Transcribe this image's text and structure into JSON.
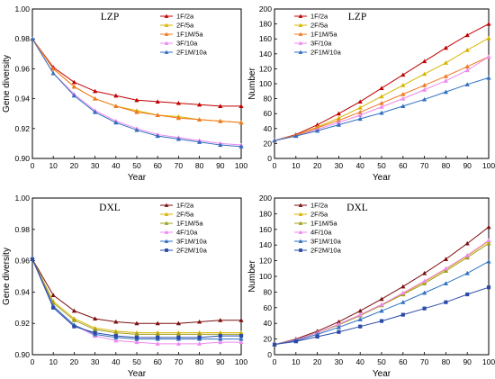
{
  "chart_data": [
    {
      "type": "line",
      "title": "LZP",
      "xlabel": "Year",
      "ylabel": "Gene diversity",
      "xlim": [
        0,
        100
      ],
      "ylim": [
        0.9,
        1.0
      ],
      "xticks": [
        "0",
        "10",
        "20",
        "30",
        "40",
        "50",
        "60",
        "70",
        "80",
        "90",
        "100"
      ],
      "yticks": [
        "0.90",
        "0.92",
        "0.94",
        "0.96",
        "0.98",
        "1.00"
      ],
      "legend": "top-right",
      "x": [
        0,
        10,
        20,
        30,
        40,
        50,
        60,
        70,
        80,
        90,
        100
      ],
      "series": [
        {
          "name": "1F/2a",
          "color": "#c00000",
          "marker": "triangle",
          "values": [
            0.98,
            0.961,
            0.951,
            0.945,
            0.942,
            0.939,
            0.938,
            0.937,
            0.936,
            0.935,
            0.935
          ]
        },
        {
          "name": "2F/5a",
          "color": "#d8b400",
          "marker": "triangle",
          "values": [
            0.98,
            0.96,
            0.948,
            0.94,
            0.935,
            0.932,
            0.929,
            0.928,
            0.926,
            0.925,
            0.924
          ]
        },
        {
          "name": "1F1M/5a",
          "color": "#f07820",
          "marker": "triangle",
          "values": [
            0.98,
            0.96,
            0.948,
            0.94,
            0.935,
            0.931,
            0.929,
            0.927,
            0.926,
            0.925,
            0.924
          ]
        },
        {
          "name": "3F/10a",
          "color": "#ee88ee",
          "marker": "triangle",
          "values": [
            0.98,
            0.957,
            0.943,
            0.932,
            0.925,
            0.92,
            0.916,
            0.914,
            0.912,
            0.91,
            0.909
          ]
        },
        {
          "name": "2F1M/10a",
          "color": "#2f6fc0",
          "marker": "triangle",
          "values": [
            0.98,
            0.957,
            0.942,
            0.931,
            0.924,
            0.919,
            0.915,
            0.913,
            0.911,
            0.909,
            0.908
          ]
        }
      ]
    },
    {
      "type": "line",
      "title": "LZP",
      "xlabel": "Year",
      "ylabel": "Number",
      "xlim": [
        0,
        100
      ],
      "ylim": [
        0,
        200
      ],
      "xticks": [
        "0",
        "10",
        "20",
        "30",
        "40",
        "50",
        "60",
        "70",
        "80",
        "90",
        "100"
      ],
      "yticks": [
        "0",
        "20",
        "40",
        "60",
        "80",
        "100",
        "120",
        "140",
        "160",
        "180",
        "200"
      ],
      "legend": "top-left",
      "x": [
        0,
        10,
        20,
        30,
        40,
        50,
        60,
        70,
        80,
        90,
        100
      ],
      "series": [
        {
          "name": "1F/2a",
          "color": "#c00000",
          "marker": "triangle",
          "values": [
            24,
            32,
            45,
            60,
            76,
            94,
            112,
            130,
            148,
            165,
            180
          ]
        },
        {
          "name": "2F/5a",
          "color": "#d8b400",
          "marker": "triangle",
          "values": [
            24,
            31,
            42,
            54,
            68,
            83,
            98,
            113,
            128,
            145,
            161
          ]
        },
        {
          "name": "1F1M/5a",
          "color": "#f07820",
          "marker": "triangle",
          "values": [
            24,
            31,
            41,
            51,
            62,
            74,
            86,
            98,
            110,
            123,
            136
          ]
        },
        {
          "name": "3F/10a",
          "color": "#ee88ee",
          "marker": "triangle",
          "values": [
            24,
            30,
            39,
            48,
            58,
            69,
            80,
            92,
            104,
            118,
            136
          ]
        },
        {
          "name": "2F1M/10a",
          "color": "#2f6fc0",
          "marker": "triangle",
          "values": [
            24,
            30,
            37,
            45,
            53,
            61,
            70,
            79,
            89,
            99,
            108
          ]
        }
      ]
    },
    {
      "type": "line",
      "title": "DXL",
      "xlabel": "Year",
      "ylabel": "Gene diversity",
      "xlim": [
        0,
        100
      ],
      "ylim": [
        0.9,
        1.0
      ],
      "xticks": [
        "0",
        "10",
        "20",
        "30",
        "40",
        "50",
        "60",
        "70",
        "80",
        "90",
        "100"
      ],
      "yticks": [
        "0.90",
        "0.92",
        "0.94",
        "0.96",
        "0.98",
        "1.00"
      ],
      "legend": "top-right",
      "x": [
        0,
        10,
        20,
        30,
        40,
        50,
        60,
        70,
        80,
        90,
        100
      ],
      "series": [
        {
          "name": "1F/2a",
          "color": "#7b1010",
          "marker": "triangle",
          "values": [
            0.961,
            0.938,
            0.928,
            0.923,
            0.921,
            0.92,
            0.92,
            0.92,
            0.921,
            0.922,
            0.922
          ]
        },
        {
          "name": "2F/5a",
          "color": "#d8b400",
          "marker": "triangle",
          "values": [
            0.961,
            0.934,
            0.923,
            0.917,
            0.915,
            0.914,
            0.914,
            0.914,
            0.914,
            0.914,
            0.914
          ]
        },
        {
          "name": "1F1M/5a",
          "color": "#a0a020",
          "marker": "triangle",
          "values": [
            0.961,
            0.933,
            0.922,
            0.916,
            0.914,
            0.913,
            0.913,
            0.913,
            0.913,
            0.913,
            0.913
          ]
        },
        {
          "name": "4F/10a",
          "color": "#ee88ee",
          "marker": "triangle",
          "values": [
            0.961,
            0.931,
            0.919,
            0.912,
            0.909,
            0.908,
            0.907,
            0.907,
            0.907,
            0.908,
            0.908
          ]
        },
        {
          "name": "3F1M/10a",
          "color": "#2f6fc0",
          "marker": "triangle",
          "values": [
            0.961,
            0.931,
            0.919,
            0.913,
            0.911,
            0.91,
            0.91,
            0.91,
            0.91,
            0.91,
            0.91
          ]
        },
        {
          "name": "2F2M/10a",
          "color": "#2a4aa8",
          "marker": "square",
          "values": [
            0.961,
            0.93,
            0.918,
            0.914,
            0.912,
            0.911,
            0.911,
            0.911,
            0.911,
            0.912,
            0.912
          ]
        }
      ]
    },
    {
      "type": "line",
      "title": "DXL",
      "xlabel": "Year",
      "ylabel": "Number",
      "xlim": [
        0,
        100
      ],
      "ylim": [
        0,
        200
      ],
      "xticks": [
        "0",
        "10",
        "20",
        "30",
        "40",
        "50",
        "60",
        "70",
        "80",
        "90",
        "100"
      ],
      "yticks": [
        "0",
        "20",
        "40",
        "60",
        "80",
        "100",
        "120",
        "140",
        "160",
        "180",
        "200"
      ],
      "legend": "top-left",
      "x": [
        0,
        10,
        20,
        30,
        40,
        50,
        60,
        70,
        80,
        90,
        100
      ],
      "series": [
        {
          "name": "1F/2a",
          "color": "#7b1010",
          "marker": "triangle",
          "values": [
            13,
            20,
            30,
            42,
            56,
            71,
            87,
            104,
            122,
            142,
            163
          ]
        },
        {
          "name": "2F/5a",
          "color": "#d8b400",
          "marker": "triangle",
          "values": [
            13,
            19,
            28,
            39,
            51,
            64,
            78,
            93,
            109,
            126,
            145
          ]
        },
        {
          "name": "1F1M/5a",
          "color": "#a0a020",
          "marker": "triangle",
          "values": [
            13,
            19,
            28,
            38,
            50,
            63,
            77,
            91,
            107,
            124,
            142
          ]
        },
        {
          "name": "4F/10a",
          "color": "#ee88ee",
          "marker": "triangle",
          "values": [
            13,
            19,
            28,
            39,
            51,
            64,
            79,
            94,
            110,
            127,
            146
          ]
        },
        {
          "name": "3F1M/10a",
          "color": "#2f6fc0",
          "marker": "triangle",
          "values": [
            13,
            18,
            26,
            35,
            45,
            56,
            67,
            79,
            91,
            104,
            119
          ]
        },
        {
          "name": "2F2M/10a",
          "color": "#2a4aa8",
          "marker": "square",
          "values": [
            13,
            17,
            23,
            29,
            36,
            43,
            51,
            59,
            67,
            77,
            86
          ]
        }
      ]
    }
  ]
}
